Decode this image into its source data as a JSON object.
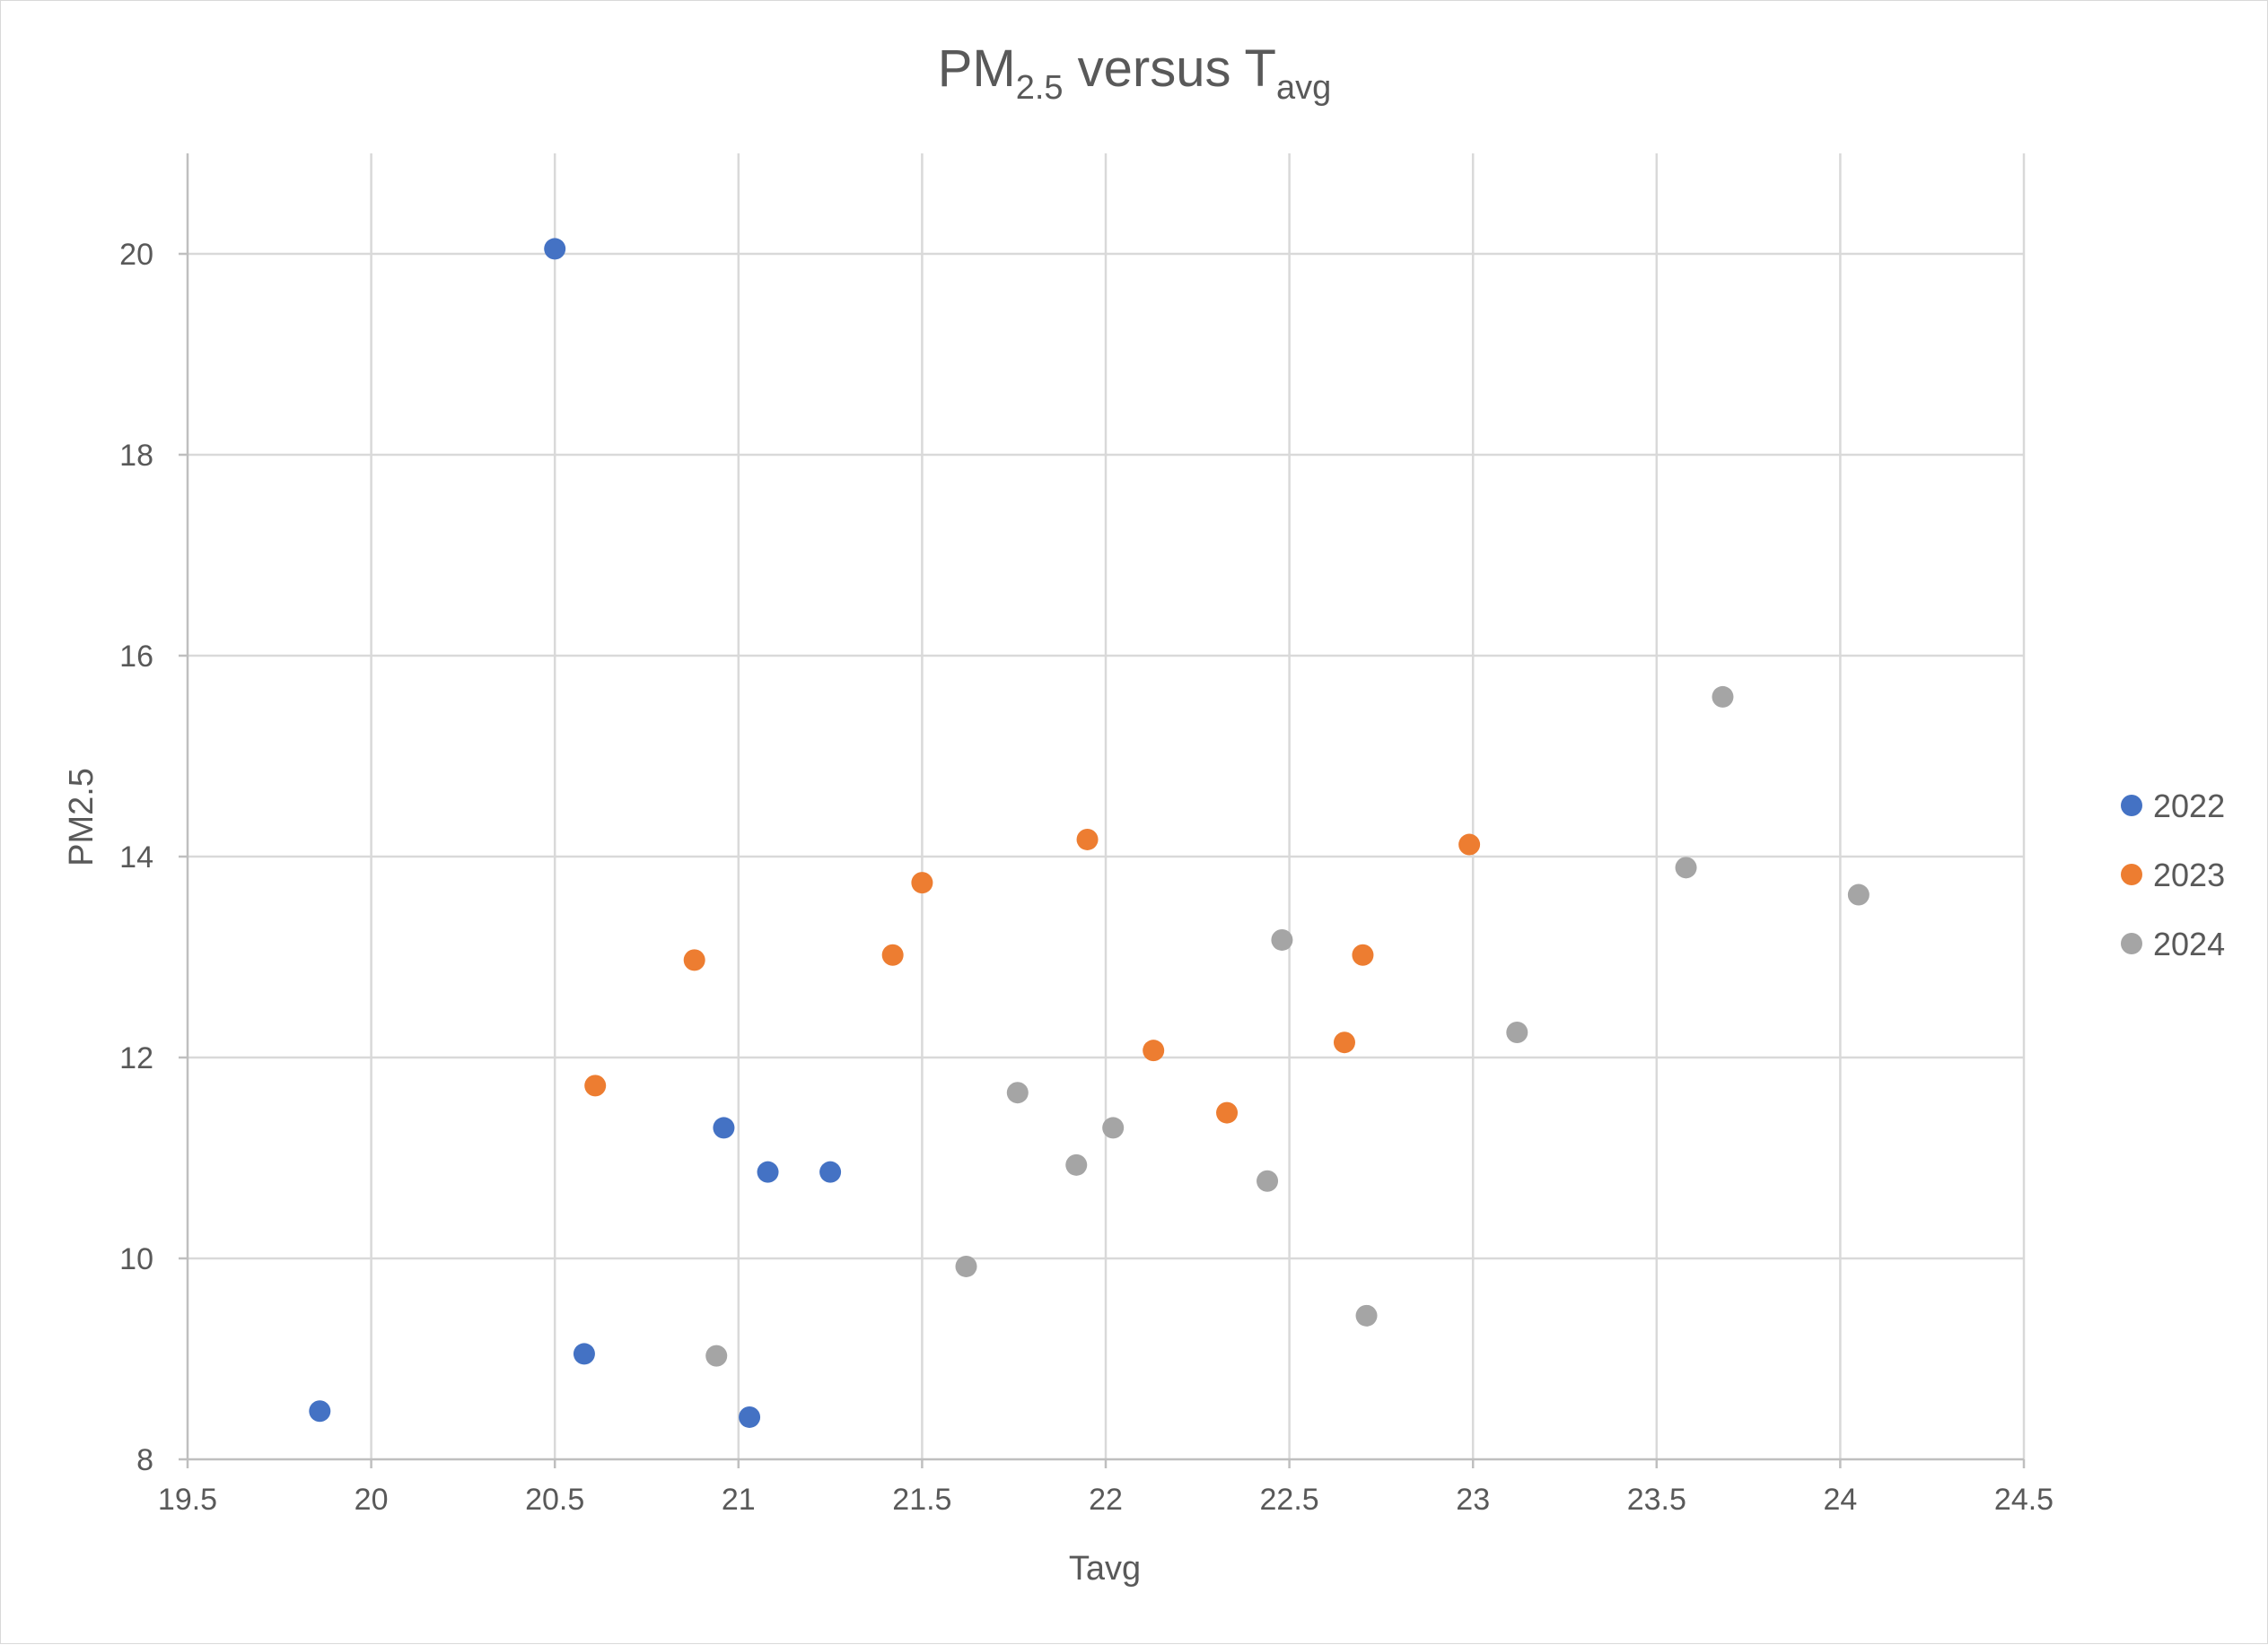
{
  "chart_data": {
    "type": "scatter",
    "title": {
      "main": "PM",
      "sub1": "2.5",
      "mid": " versus T",
      "sub2": "avg"
    },
    "xlabel": "Tavg",
    "ylabel": "PM2.5",
    "xlim": [
      19.5,
      24.5
    ],
    "ylim": [
      8,
      21
    ],
    "xticks": [
      19.5,
      20,
      20.5,
      21,
      21.5,
      22,
      22.5,
      23,
      23.5,
      24,
      24.5
    ],
    "xtick_labels": [
      "19.5",
      "20",
      "20.5",
      "21",
      "21.5",
      "22",
      "22.5",
      "23",
      "23.5",
      "24",
      "24.5"
    ],
    "yticks": [
      8,
      10,
      12,
      14,
      16,
      18,
      20
    ],
    "ytick_labels": [
      "8",
      "10",
      "12",
      "14",
      "16",
      "18",
      "20"
    ],
    "grid": true,
    "legend_position": "right",
    "series": [
      {
        "name": "2022",
        "color": "#4472c4",
        "points": [
          [
            20.5,
            20.05
          ],
          [
            19.86,
            8.48
          ],
          [
            20.58,
            9.05
          ],
          [
            21.03,
            8.42
          ],
          [
            20.96,
            11.3
          ],
          [
            21.08,
            10.86
          ],
          [
            21.25,
            10.86
          ]
        ]
      },
      {
        "name": "2023",
        "color": "#ed7d31",
        "points": [
          [
            20.61,
            11.72
          ],
          [
            20.88,
            12.97
          ],
          [
            21.42,
            13.02
          ],
          [
            21.5,
            13.74
          ],
          [
            21.95,
            14.17
          ],
          [
            22.13,
            12.07
          ],
          [
            22.33,
            11.45
          ],
          [
            22.65,
            12.15
          ],
          [
            22.7,
            13.02
          ],
          [
            22.99,
            14.12
          ]
        ]
      },
      {
        "name": "2024",
        "color": "#a5a5a5",
        "points": [
          [
            20.94,
            9.03
          ],
          [
            21.62,
            9.92
          ],
          [
            21.76,
            11.65
          ],
          [
            21.92,
            10.93
          ],
          [
            22.02,
            11.3
          ],
          [
            22.44,
            10.77
          ],
          [
            22.48,
            13.17
          ],
          [
            22.71,
            9.43
          ],
          [
            23.12,
            12.25
          ],
          [
            23.58,
            13.89
          ],
          [
            23.68,
            15.59
          ],
          [
            24.05,
            13.62
          ]
        ]
      }
    ]
  }
}
